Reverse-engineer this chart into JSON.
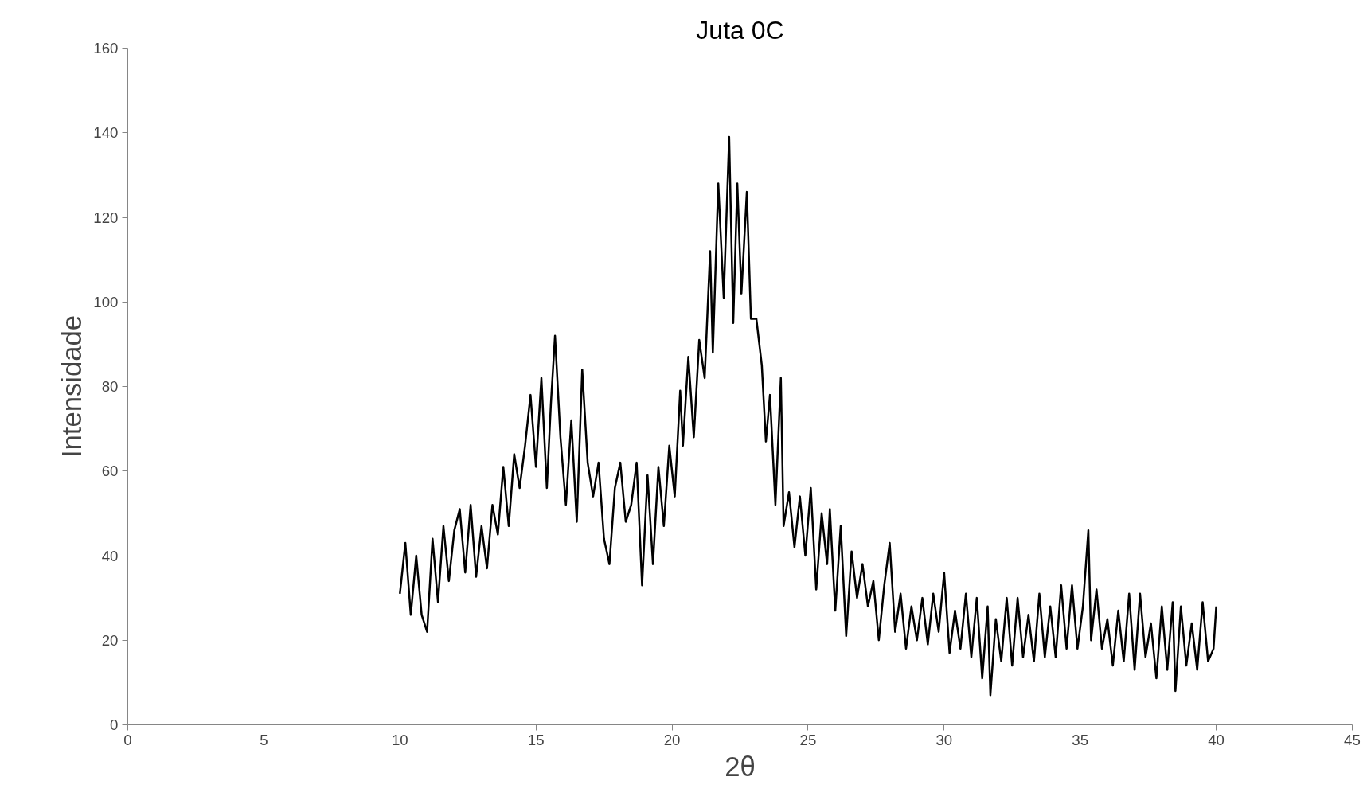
{
  "chart_data": {
    "type": "line",
    "title": "Juta 0C",
    "xlabel": "2θ",
    "ylabel": "Intensidade",
    "xlim": [
      0,
      45
    ],
    "xticks": [
      0,
      5,
      10,
      15,
      20,
      25,
      30,
      35,
      40,
      45
    ],
    "ylim": [
      0,
      160
    ],
    "yticks": [
      0,
      20,
      40,
      60,
      80,
      100,
      120,
      140,
      160
    ],
    "grid": false,
    "marker": "none",
    "line_style": "solid",
    "series": [
      {
        "color": "#000000",
        "x": [
          10.0,
          10.2,
          10.4,
          10.6,
          10.8,
          11.0,
          11.2,
          11.4,
          11.6,
          11.8,
          12.0,
          12.2,
          12.4,
          12.6,
          12.8,
          13.0,
          13.2,
          13.4,
          13.6,
          13.8,
          14.0,
          14.2,
          14.4,
          14.6,
          14.8,
          15.0,
          15.2,
          15.4,
          15.55,
          15.7,
          15.9,
          16.1,
          16.3,
          16.5,
          16.7,
          16.9,
          17.1,
          17.3,
          17.5,
          17.7,
          17.9,
          18.1,
          18.3,
          18.5,
          18.7,
          18.9,
          19.1,
          19.3,
          19.5,
          19.7,
          19.9,
          20.1,
          20.3,
          20.4,
          20.6,
          20.8,
          21.0,
          21.2,
          21.4,
          21.5,
          21.7,
          21.9,
          22.1,
          22.25,
          22.4,
          22.55,
          22.75,
          22.9,
          23.1,
          23.3,
          23.45,
          23.6,
          23.8,
          24.0,
          24.1,
          24.3,
          24.5,
          24.7,
          24.9,
          25.1,
          25.3,
          25.5,
          25.7,
          25.8,
          26.0,
          26.2,
          26.4,
          26.6,
          26.8,
          27.0,
          27.2,
          27.4,
          27.6,
          27.8,
          28.0,
          28.2,
          28.4,
          28.6,
          28.8,
          29.0,
          29.2,
          29.4,
          29.6,
          29.8,
          30.0,
          30.2,
          30.4,
          30.6,
          30.8,
          31.0,
          31.2,
          31.4,
          31.6,
          31.7,
          31.9,
          32.1,
          32.3,
          32.5,
          32.7,
          32.9,
          33.1,
          33.3,
          33.5,
          33.7,
          33.9,
          34.1,
          34.3,
          34.5,
          34.7,
          34.9,
          35.1,
          35.3,
          35.4,
          35.6,
          35.8,
          36.0,
          36.2,
          36.4,
          36.6,
          36.8,
          37.0,
          37.2,
          37.4,
          37.6,
          37.8,
          38.0,
          38.2,
          38.4,
          38.5,
          38.7,
          38.9,
          39.1,
          39.3,
          39.5,
          39.7,
          39.9,
          40.0
        ],
        "values": [
          31,
          43,
          26,
          40,
          26,
          22,
          44,
          29,
          47,
          34,
          46,
          51,
          36,
          52,
          35,
          47,
          37,
          52,
          45,
          61,
          47,
          64,
          56,
          66,
          78,
          61,
          82,
          56,
          76,
          92,
          68,
          52,
          72,
          48,
          84,
          62,
          54,
          62,
          44,
          38,
          56,
          62,
          48,
          52,
          62,
          33,
          59,
          38,
          61,
          47,
          66,
          54,
          79,
          66,
          87,
          68,
          91,
          82,
          112,
          88,
          128,
          101,
          139,
          95,
          128,
          102,
          126,
          96,
          96,
          85,
          67,
          78,
          52,
          82,
          47,
          55,
          42,
          54,
          40,
          56,
          32,
          50,
          38,
          51,
          27,
          47,
          21,
          41,
          30,
          38,
          28,
          34,
          20,
          33,
          43,
          22,
          31,
          18,
          28,
          20,
          30,
          19,
          31,
          22,
          36,
          17,
          27,
          18,
          31,
          16,
          30,
          11,
          28,
          7,
          25,
          15,
          30,
          14,
          30,
          16,
          26,
          15,
          31,
          16,
          28,
          16,
          33,
          18,
          33,
          18,
          28,
          46,
          20,
          32,
          18,
          25,
          14,
          27,
          15,
          31,
          13,
          31,
          16,
          24,
          11,
          28,
          13,
          29,
          8,
          28,
          14,
          24,
          13,
          29,
          15,
          18,
          28
        ]
      }
    ]
  }
}
